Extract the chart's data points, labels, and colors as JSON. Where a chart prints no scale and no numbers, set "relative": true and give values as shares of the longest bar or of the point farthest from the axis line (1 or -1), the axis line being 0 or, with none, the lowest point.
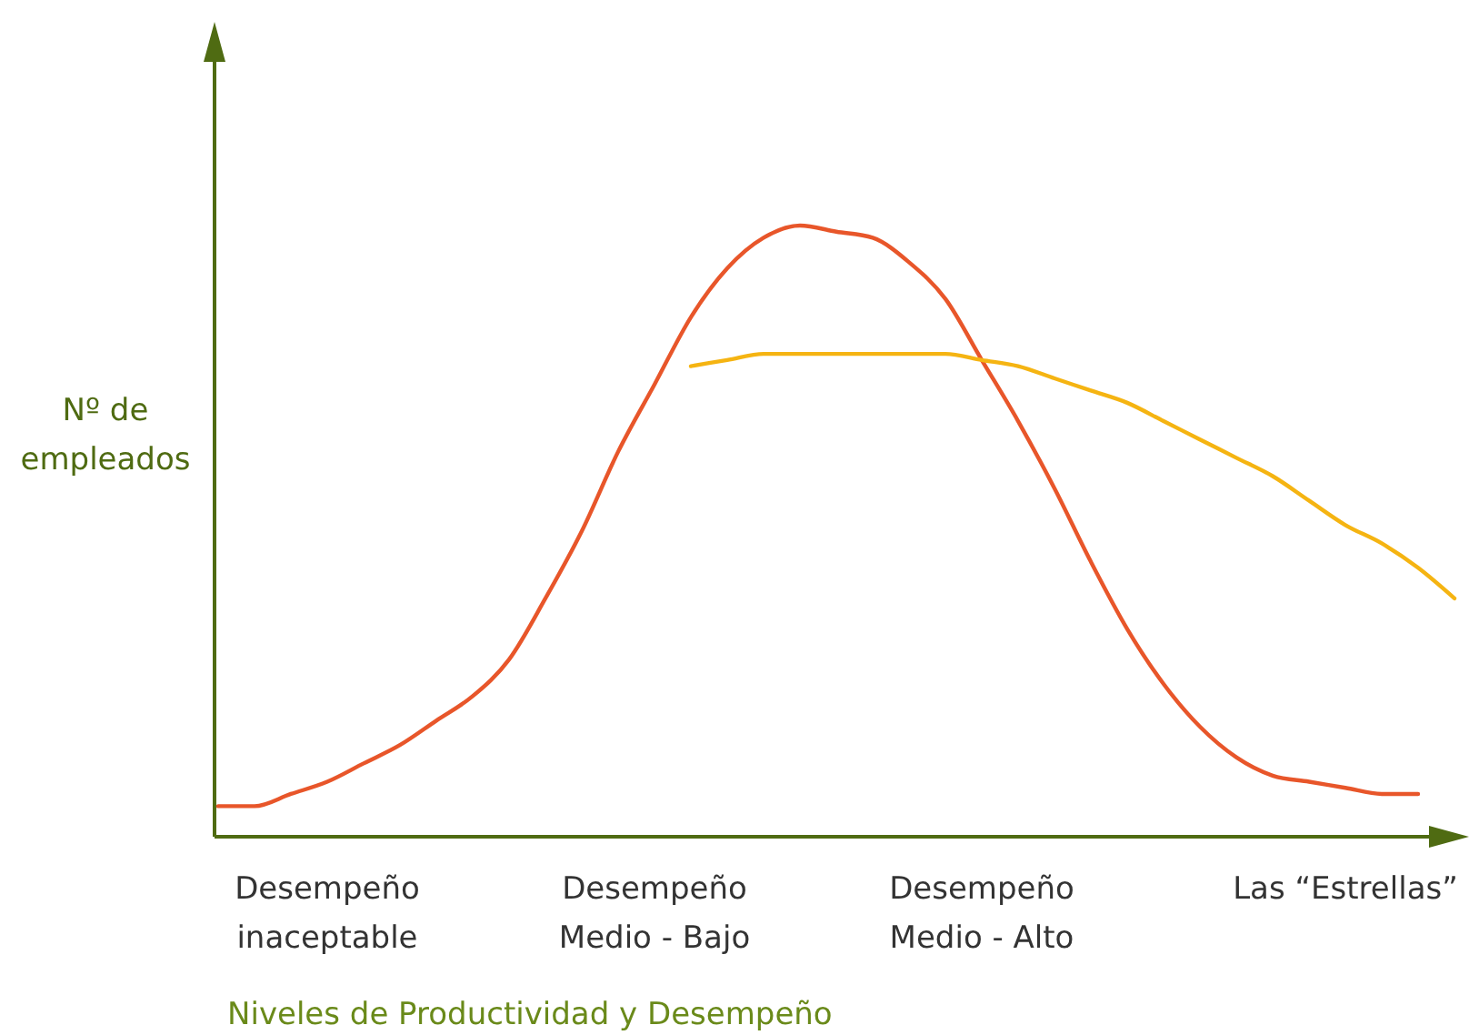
{
  "chart_data": {
    "type": "line",
    "relative": true,
    "xlabel": "Niveles de Productividad y Desempeño",
    "ylabel": "Nº de empleados",
    "categories": [
      null,
      null,
      null,
      "Desempeño\ninaceptable",
      null,
      null,
      null,
      null,
      null,
      null,
      null,
      null,
      "Desempeño\nMedio - Bajo",
      null,
      null,
      null,
      null,
      null,
      null,
      null,
      null,
      "Desempeño\nMedio - Alto",
      null,
      null,
      null,
      null,
      null,
      null,
      null,
      null,
      null,
      "Las “Estrellas”",
      null,
      null,
      null
    ],
    "series": [
      {
        "color": "#e8562a",
        "values": [
          0.05,
          0.05,
          0.07,
          0.09,
          0.12,
          0.15,
          0.19,
          0.23,
          0.29,
          0.39,
          0.5,
          0.63,
          0.74,
          0.85,
          0.93,
          0.98,
          1,
          0.99,
          0.98,
          0.94,
          0.88,
          0.78,
          0.68,
          0.57,
          0.45,
          0.34,
          0.25,
          0.18,
          0.13,
          0.1,
          0.09,
          0.08,
          0.07,
          0.07,
          null
        ]
      },
      {
        "color": "#f5b412",
        "values": [
          null,
          null,
          null,
          null,
          null,
          null,
          null,
          null,
          null,
          null,
          null,
          null,
          null,
          0.77,
          0.78,
          0.79,
          0.79,
          0.79,
          0.79,
          0.79,
          0.79,
          0.78,
          0.77,
          0.75,
          0.73,
          0.71,
          0.68,
          0.65,
          0.62,
          0.59,
          0.55,
          0.51,
          0.48,
          0.44,
          0.39
        ]
      }
    ]
  }
}
